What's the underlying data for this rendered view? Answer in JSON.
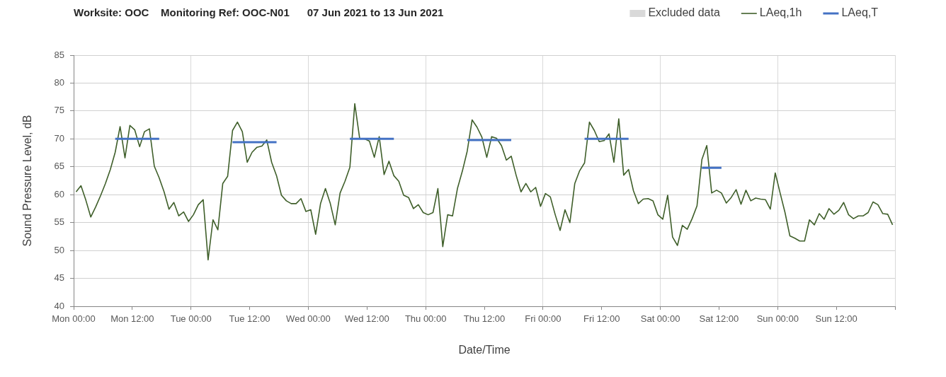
{
  "chart_data": {
    "type": "line",
    "title": "Worksite: OOC    Monitoring Ref: OOC-N01      07 Jun 2021 to 13 Jun 2021",
    "xlabel": "Date/Time",
    "ylabel": "Sound Pressure Level, dB",
    "x": [
      "2021-06-07T00:30",
      "2021-06-07T01:30",
      "2021-06-07T02:30",
      "2021-06-07T03:30",
      "2021-06-07T04:30",
      "2021-06-07T05:30",
      "2021-06-07T06:30",
      "2021-06-07T07:30",
      "2021-06-07T08:30",
      "2021-06-07T09:30",
      "2021-06-07T10:30",
      "2021-06-07T11:30",
      "2021-06-07T12:30",
      "2021-06-07T13:30",
      "2021-06-07T14:30",
      "2021-06-07T15:30",
      "2021-06-07T16:30",
      "2021-06-07T17:30",
      "2021-06-07T18:30",
      "2021-06-07T19:30",
      "2021-06-07T20:30",
      "2021-06-07T21:30",
      "2021-06-07T22:30",
      "2021-06-07T23:30",
      "2021-06-08T00:30",
      "2021-06-08T01:30",
      "2021-06-08T02:30",
      "2021-06-08T03:30",
      "2021-06-08T04:30",
      "2021-06-08T05:30",
      "2021-06-08T06:30",
      "2021-06-08T07:30",
      "2021-06-08T08:30",
      "2021-06-08T09:30",
      "2021-06-08T10:30",
      "2021-06-08T11:30",
      "2021-06-08T12:30",
      "2021-06-08T13:30",
      "2021-06-08T14:30",
      "2021-06-08T15:30",
      "2021-06-08T16:30",
      "2021-06-08T17:30",
      "2021-06-08T18:30",
      "2021-06-08T19:30",
      "2021-06-08T20:30",
      "2021-06-08T21:30",
      "2021-06-08T22:30",
      "2021-06-08T23:30",
      "2021-06-09T00:30",
      "2021-06-09T01:30",
      "2021-06-09T02:30",
      "2021-06-09T03:30",
      "2021-06-09T04:30",
      "2021-06-09T05:30",
      "2021-06-09T06:30",
      "2021-06-09T07:30",
      "2021-06-09T08:30",
      "2021-06-09T09:30",
      "2021-06-09T10:30",
      "2021-06-09T11:30",
      "2021-06-09T12:30",
      "2021-06-09T13:30",
      "2021-06-09T14:30",
      "2021-06-09T15:30",
      "2021-06-09T16:30",
      "2021-06-09T17:30",
      "2021-06-09T18:30",
      "2021-06-09T19:30",
      "2021-06-09T20:30",
      "2021-06-09T21:30",
      "2021-06-09T22:30",
      "2021-06-09T23:30",
      "2021-06-10T00:30",
      "2021-06-10T01:30",
      "2021-06-10T02:30",
      "2021-06-10T03:30",
      "2021-06-10T04:30",
      "2021-06-10T05:30",
      "2021-06-10T06:30",
      "2021-06-10T07:30",
      "2021-06-10T08:30",
      "2021-06-10T09:30",
      "2021-06-10T10:30",
      "2021-06-10T11:30",
      "2021-06-10T12:30",
      "2021-06-10T13:30",
      "2021-06-10T14:30",
      "2021-06-10T15:30",
      "2021-06-10T16:30",
      "2021-06-10T17:30",
      "2021-06-10T18:30",
      "2021-06-10T19:30",
      "2021-06-10T20:30",
      "2021-06-10T21:30",
      "2021-06-10T22:30",
      "2021-06-10T23:30",
      "2021-06-11T00:30",
      "2021-06-11T01:30",
      "2021-06-11T02:30",
      "2021-06-11T03:30",
      "2021-06-11T04:30",
      "2021-06-11T05:30",
      "2021-06-11T06:30",
      "2021-06-11T07:30",
      "2021-06-11T08:30",
      "2021-06-11T09:30",
      "2021-06-11T10:30",
      "2021-06-11T11:30",
      "2021-06-11T12:30",
      "2021-06-11T13:30",
      "2021-06-11T14:30",
      "2021-06-11T15:30",
      "2021-06-11T16:30",
      "2021-06-11T17:30",
      "2021-06-11T18:30",
      "2021-06-11T19:30",
      "2021-06-11T20:30",
      "2021-06-11T21:30",
      "2021-06-11T22:30",
      "2021-06-11T23:30",
      "2021-06-12T00:30",
      "2021-06-12T01:30",
      "2021-06-12T02:30",
      "2021-06-12T03:30",
      "2021-06-12T04:30",
      "2021-06-12T05:30",
      "2021-06-12T06:30",
      "2021-06-12T07:30",
      "2021-06-12T08:30",
      "2021-06-12T09:30",
      "2021-06-12T10:30",
      "2021-06-12T11:30",
      "2021-06-12T12:30",
      "2021-06-12T13:30",
      "2021-06-12T14:30",
      "2021-06-12T15:30",
      "2021-06-12T16:30",
      "2021-06-12T17:30",
      "2021-06-12T18:30",
      "2021-06-12T19:30",
      "2021-06-12T20:30",
      "2021-06-12T21:30",
      "2021-06-12T22:30",
      "2021-06-12T23:30",
      "2021-06-13T00:30",
      "2021-06-13T01:30",
      "2021-06-13T02:30",
      "2021-06-13T03:30",
      "2021-06-13T04:30",
      "2021-06-13T05:30",
      "2021-06-13T06:30",
      "2021-06-13T07:30",
      "2021-06-13T08:30",
      "2021-06-13T09:30",
      "2021-06-13T10:30",
      "2021-06-13T11:30",
      "2021-06-13T12:30",
      "2021-06-13T13:30",
      "2021-06-13T14:30",
      "2021-06-13T15:30",
      "2021-06-13T16:30",
      "2021-06-13T17:30",
      "2021-06-13T18:30",
      "2021-06-13T19:30",
      "2021-06-13T20:30",
      "2021-06-13T21:30",
      "2021-06-13T22:30",
      "2021-06-13T23:30"
    ],
    "xlim": [
      "2021-06-07T00:00",
      "2021-06-14T00:00"
    ],
    "xticks": [
      {
        "value": "2021-06-07T00:00",
        "label": "Mon 00:00"
      },
      {
        "value": "2021-06-07T12:00",
        "label": "Mon 12:00"
      },
      {
        "value": "2021-06-08T00:00",
        "label": "Tue 00:00"
      },
      {
        "value": "2021-06-08T12:00",
        "label": "Tue 12:00"
      },
      {
        "value": "2021-06-09T00:00",
        "label": "Wed 00:00"
      },
      {
        "value": "2021-06-09T12:00",
        "label": "Wed 12:00"
      },
      {
        "value": "2021-06-10T00:00",
        "label": "Thu 00:00"
      },
      {
        "value": "2021-06-10T12:00",
        "label": "Thu 12:00"
      },
      {
        "value": "2021-06-11T00:00",
        "label": "Fri 00:00"
      },
      {
        "value": "2021-06-11T12:00",
        "label": "Fri 12:00"
      },
      {
        "value": "2021-06-12T00:00",
        "label": "Sat 00:00"
      },
      {
        "value": "2021-06-12T12:00",
        "label": "Sat 12:00"
      },
      {
        "value": "2021-06-13T00:00",
        "label": "Sun 00:00"
      },
      {
        "value": "2021-06-13T12:00",
        "label": "Sun 12:00"
      },
      {
        "value": "2021-06-14T00:00",
        "label": null
      }
    ],
    "ylim": [
      40,
      85
    ],
    "yticks": [
      40,
      45,
      50,
      55,
      60,
      65,
      70,
      75,
      80,
      85
    ],
    "grid": true,
    "legend": "top right",
    "marker": "none",
    "series": [
      {
        "name": "Excluded data",
        "type": "bar",
        "color": "#d9d9d9",
        "values": [
          null,
          null,
          null,
          null,
          null,
          null,
          null,
          null,
          null,
          null,
          null,
          null,
          null,
          null,
          null,
          null,
          null,
          null,
          null,
          null,
          null,
          null,
          null,
          null,
          null,
          null,
          null,
          null,
          null,
          null,
          null,
          null,
          null,
          null,
          null,
          null,
          null,
          null,
          null,
          null,
          null,
          null,
          null,
          null,
          null,
          null,
          null,
          null,
          null,
          null,
          null,
          null,
          null,
          null,
          null,
          null,
          null,
          null,
          null,
          null,
          null,
          null,
          null,
          null,
          null,
          null,
          null,
          null,
          null,
          null,
          null,
          null,
          null,
          null,
          null,
          null,
          null,
          null,
          null,
          null,
          null,
          null,
          null,
          null,
          null,
          null,
          null,
          null,
          null,
          null,
          null,
          null,
          null,
          null,
          null,
          null,
          null,
          null,
          null,
          null,
          null,
          null,
          null,
          null,
          null,
          null,
          null,
          null,
          null,
          null,
          null,
          null,
          null,
          null,
          null,
          null,
          null,
          null,
          null,
          null,
          null,
          null,
          null,
          null,
          null,
          null,
          null,
          null,
          null,
          null,
          null,
          null,
          null,
          null,
          null,
          null,
          null,
          null,
          null,
          null,
          null,
          null,
          null,
          null,
          null,
          null,
          null,
          null,
          null,
          null,
          null,
          null,
          null,
          null,
          null,
          null,
          null,
          null,
          null,
          null,
          null,
          null,
          null,
          null,
          null,
          null,
          null,
          null
        ]
      },
      {
        "name": "LAeq,1h",
        "color": "#3f5f2a",
        "values": [
          60.5,
          61.6,
          59.0,
          56.0,
          57.8,
          59.8,
          62.0,
          64.5,
          67.6,
          72.2,
          66.6,
          72.4,
          71.6,
          68.6,
          71.3,
          71.8,
          65.1,
          63.0,
          60.5,
          57.4,
          58.6,
          56.2,
          56.9,
          55.2,
          56.4,
          58.2,
          59.1,
          48.3,
          55.5,
          53.7,
          62.0,
          63.3,
          71.5,
          73.0,
          71.3,
          65.8,
          67.6,
          68.5,
          68.7,
          69.8,
          65.8,
          63.4,
          59.9,
          58.9,
          58.4,
          58.4,
          59.3,
          57.0,
          57.3,
          52.9,
          58.4,
          61.1,
          58.4,
          54.6,
          60.3,
          62.4,
          64.9,
          76.3,
          70.1,
          70.0,
          69.6,
          66.7,
          70.4,
          63.6,
          66.0,
          63.4,
          62.4,
          59.9,
          59.5,
          57.5,
          58.2,
          56.8,
          56.4,
          56.8,
          61.1,
          50.7,
          56.4,
          56.2,
          61.1,
          64.2,
          67.8,
          73.4,
          72.1,
          70.3,
          66.7,
          70.4,
          70.1,
          68.8,
          66.2,
          66.9,
          63.5,
          60.5,
          62.0,
          60.5,
          61.3,
          57.9,
          60.2,
          59.6,
          56.4,
          53.6,
          57.3,
          55.0,
          62.0,
          64.3,
          65.7,
          73.0,
          71.5,
          69.5,
          69.7,
          70.9,
          65.8,
          73.6,
          63.5,
          64.5,
          60.7,
          58.4,
          59.2,
          59.3,
          58.9,
          56.4,
          55.6,
          59.9,
          52.4,
          50.9,
          54.5,
          53.8,
          55.7,
          58.0,
          66.3,
          68.8,
          60.3,
          60.8,
          60.3,
          58.5,
          59.5,
          60.9,
          58.3,
          60.8,
          58.9,
          59.4,
          59.2,
          59.1,
          57.4,
          63.9,
          60.3,
          56.8,
          52.6,
          52.2,
          51.7,
          51.7,
          55.5,
          54.6,
          56.6,
          55.6,
          57.5,
          56.5,
          57.2,
          58.6,
          56.4,
          55.7,
          56.2,
          56.2,
          56.8,
          58.7,
          58.2,
          56.6,
          56.5,
          54.6
        ]
      },
      {
        "name": "LAeq,T",
        "color": "#4472c4",
        "values": [
          null,
          null,
          null,
          null,
          null,
          null,
          null,
          null,
          70.0,
          70.0,
          70.0,
          70.0,
          70.0,
          70.0,
          70.0,
          70.0,
          70.0,
          70.0,
          null,
          null,
          null,
          null,
          null,
          null,
          null,
          null,
          null,
          null,
          null,
          null,
          null,
          null,
          69.4,
          69.4,
          69.4,
          69.4,
          69.4,
          69.4,
          69.4,
          69.4,
          69.4,
          69.4,
          null,
          null,
          null,
          null,
          null,
          null,
          null,
          null,
          null,
          null,
          null,
          null,
          null,
          null,
          70.0,
          70.0,
          70.0,
          70.0,
          70.0,
          70.0,
          70.0,
          70.0,
          70.0,
          70.0,
          null,
          null,
          null,
          null,
          null,
          null,
          null,
          null,
          null,
          null,
          null,
          null,
          null,
          null,
          69.8,
          69.8,
          69.8,
          69.8,
          69.8,
          69.8,
          69.8,
          69.8,
          69.8,
          69.8,
          null,
          null,
          null,
          null,
          null,
          null,
          null,
          null,
          null,
          null,
          null,
          null,
          null,
          null,
          70.0,
          70.0,
          70.0,
          70.0,
          70.0,
          70.0,
          70.0,
          70.0,
          70.0,
          70.0,
          null,
          null,
          null,
          null,
          null,
          null,
          null,
          null,
          null,
          null,
          null,
          null,
          null,
          null,
          64.8,
          64.8,
          64.8,
          64.8,
          64.8,
          null,
          null,
          null,
          null,
          null,
          null,
          null,
          null,
          null,
          null,
          null,
          null,
          null,
          null,
          null,
          null,
          null,
          null,
          null,
          null,
          null,
          null,
          null,
          null,
          null,
          null,
          null,
          null,
          null,
          null,
          null,
          null,
          null,
          null,
          null
        ]
      }
    ]
  }
}
